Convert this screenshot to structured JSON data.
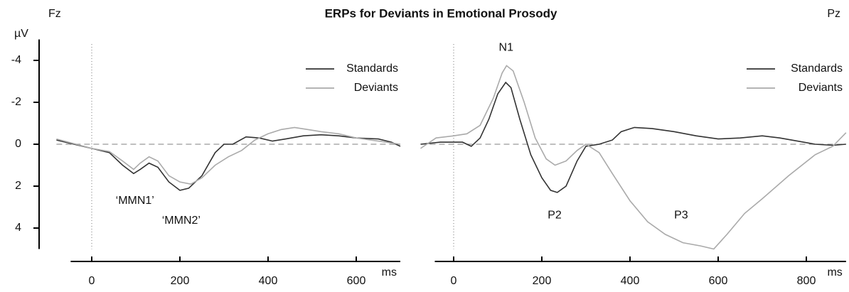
{
  "title": "ERPs for Deviants in Emotional Prosody",
  "chart_data": [
    {
      "type": "line",
      "label": "Fz",
      "ylabel": "µV",
      "xlabel": "ms",
      "y_inverted": true,
      "xlim": [
        -80,
        700
      ],
      "xticks": [
        0,
        200,
        400,
        600
      ],
      "ylim": [
        -5,
        5
      ],
      "yticks": [
        -4,
        -2,
        0,
        2,
        4
      ],
      "legend": "upper right",
      "series": [
        {
          "name": "Standards",
          "color": "#333333",
          "x": [
            -80,
            0,
            40,
            70,
            95,
            110,
            130,
            150,
            175,
            200,
            220,
            250,
            280,
            300,
            320,
            350,
            380,
            410,
            440,
            480,
            520,
            560,
            600,
            650,
            680,
            700
          ],
          "values": [
            -0.2,
            0.2,
            0.4,
            1.0,
            1.4,
            1.2,
            0.9,
            1.1,
            1.8,
            2.2,
            2.1,
            1.5,
            0.4,
            0.0,
            0.0,
            -0.35,
            -0.3,
            -0.15,
            -0.25,
            -0.4,
            -0.45,
            -0.4,
            -0.3,
            -0.25,
            -0.1,
            0.1
          ]
        },
        {
          "name": "Deviants",
          "color": "#aaaaaa",
          "x": [
            -80,
            0,
            40,
            70,
            95,
            110,
            130,
            150,
            175,
            200,
            225,
            250,
            280,
            310,
            340,
            370,
            400,
            430,
            460,
            490,
            520,
            560,
            600,
            650,
            700
          ],
          "values": [
            -0.25,
            0.2,
            0.35,
            0.8,
            1.2,
            0.9,
            0.6,
            0.8,
            1.5,
            1.8,
            1.9,
            1.6,
            1.0,
            0.6,
            0.3,
            -0.2,
            -0.5,
            -0.7,
            -0.8,
            -0.7,
            -0.6,
            -0.5,
            -0.3,
            -0.15,
            0.0
          ]
        }
      ],
      "annotations": [
        {
          "text": "‘MMN1’",
          "x": 98,
          "y": 2.7
        },
        {
          "text": "‘MMN2’",
          "x": 203,
          "y": 3.65
        }
      ]
    },
    {
      "type": "line",
      "label": "Pz",
      "xlabel": "ms",
      "y_inverted": true,
      "xlim": [
        -75,
        890
      ],
      "xticks": [
        0,
        200,
        400,
        600,
        800
      ],
      "ylim": [
        -5,
        5
      ],
      "legend": "upper right",
      "series": [
        {
          "name": "Standards",
          "color": "#333333",
          "x": [
            -75,
            -30,
            20,
            40,
            60,
            80,
            100,
            118,
            130,
            150,
            175,
            200,
            220,
            235,
            255,
            280,
            300,
            330,
            360,
            380,
            410,
            450,
            500,
            550,
            600,
            650,
            700,
            740,
            780,
            820,
            860,
            890
          ],
          "values": [
            0.0,
            -0.1,
            -0.1,
            0.1,
            -0.3,
            -1.2,
            -2.4,
            -2.95,
            -2.7,
            -1.2,
            0.5,
            1.6,
            2.2,
            2.3,
            2.0,
            0.8,
            0.1,
            0.0,
            -0.2,
            -0.6,
            -0.8,
            -0.75,
            -0.6,
            -0.4,
            -0.25,
            -0.3,
            -0.4,
            -0.3,
            -0.15,
            0.0,
            0.05,
            0.0
          ]
        },
        {
          "name": "Deviants",
          "color": "#aaaaaa",
          "x": [
            -75,
            -40,
            0,
            30,
            60,
            90,
            110,
            120,
            135,
            160,
            185,
            210,
            230,
            255,
            280,
            300,
            330,
            360,
            400,
            440,
            480,
            520,
            560,
            590,
            620,
            660,
            700,
            760,
            820,
            860,
            890
          ],
          "values": [
            0.2,
            -0.3,
            -0.4,
            -0.5,
            -0.9,
            -2.2,
            -3.4,
            -3.75,
            -3.5,
            -2.0,
            -0.3,
            0.7,
            1.0,
            0.8,
            0.3,
            0.0,
            0.4,
            1.4,
            2.7,
            3.7,
            4.3,
            4.7,
            4.85,
            5.0,
            4.3,
            3.3,
            2.6,
            1.5,
            0.5,
            0.1,
            -0.55
          ]
        }
      ],
      "annotations": [
        {
          "text": "N1",
          "x": 119,
          "y": -4.6
        },
        {
          "text": "P2",
          "x": 229,
          "y": 3.4
        },
        {
          "text": "P3",
          "x": 516,
          "y": 3.4
        }
      ]
    }
  ]
}
